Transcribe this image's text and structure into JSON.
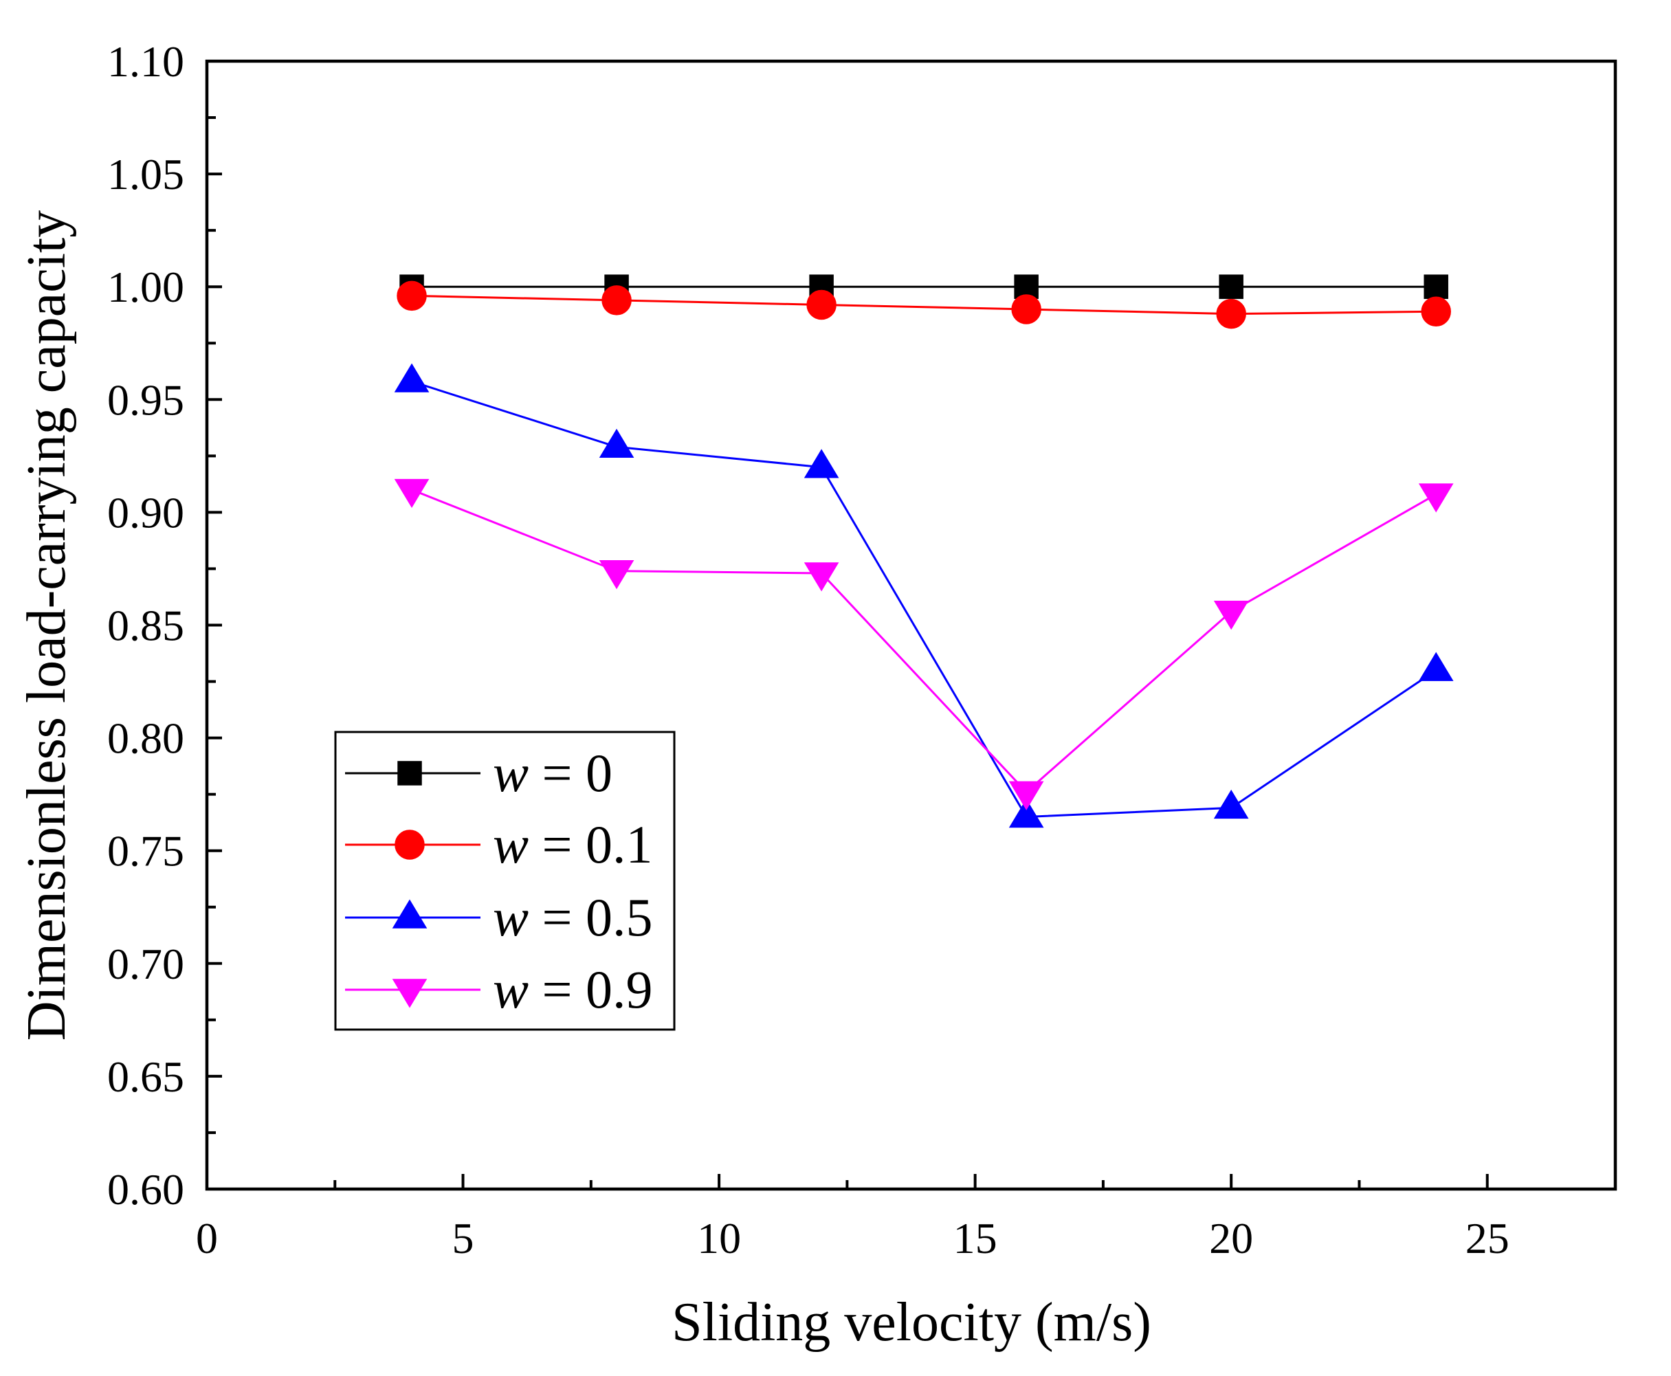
{
  "chart_data": {
    "type": "line",
    "title": "",
    "xlabel": "Sliding velocity (m/s)",
    "ylabel": "Dimensionless load-carrying capacity",
    "xlim": [
      0,
      27.5
    ],
    "ylim": [
      0.6,
      1.1
    ],
    "x_ticks": [
      0,
      5,
      10,
      15,
      20,
      25
    ],
    "x_tick_labels": [
      "0",
      "5",
      "10",
      "15",
      "20",
      "25"
    ],
    "x_minor_ticks": [
      2.5,
      7.5,
      12.5,
      17.5,
      22.5
    ],
    "y_ticks": [
      0.6,
      0.65,
      0.7,
      0.75,
      0.8,
      0.85,
      0.9,
      0.95,
      1.0,
      1.05,
      1.1
    ],
    "y_tick_labels": [
      "0.60",
      "0.65",
      "0.70",
      "0.75",
      "0.80",
      "0.85",
      "0.90",
      "0.95",
      "1.00",
      "1.05",
      "1.10"
    ],
    "y_minor_ticks": [
      0.625,
      0.675,
      0.725,
      0.775,
      0.825,
      0.875,
      0.925,
      0.975,
      1.025,
      1.075
    ],
    "grid": false,
    "legend_position": "lower-left",
    "x": [
      4,
      8,
      12,
      16,
      20,
      24
    ],
    "series": [
      {
        "name": "w = 0",
        "marker": "square",
        "color": "#000000",
        "values": [
          1.0,
          1.0,
          1.0,
          1.0,
          1.0,
          1.0
        ]
      },
      {
        "name": "w = 0.1",
        "marker": "circle",
        "color": "#FF0000",
        "values": [
          0.996,
          0.994,
          0.992,
          0.99,
          0.988,
          0.989
        ]
      },
      {
        "name": "w = 0.5",
        "marker": "triangle-up",
        "color": "#0000FF",
        "values": [
          0.958,
          0.929,
          0.92,
          0.765,
          0.769,
          0.83
        ]
      },
      {
        "name": "w = 0.9",
        "marker": "triangle-down",
        "color": "#FF00FF",
        "values": [
          0.91,
          0.874,
          0.873,
          0.776,
          0.856,
          0.908
        ]
      }
    ]
  }
}
